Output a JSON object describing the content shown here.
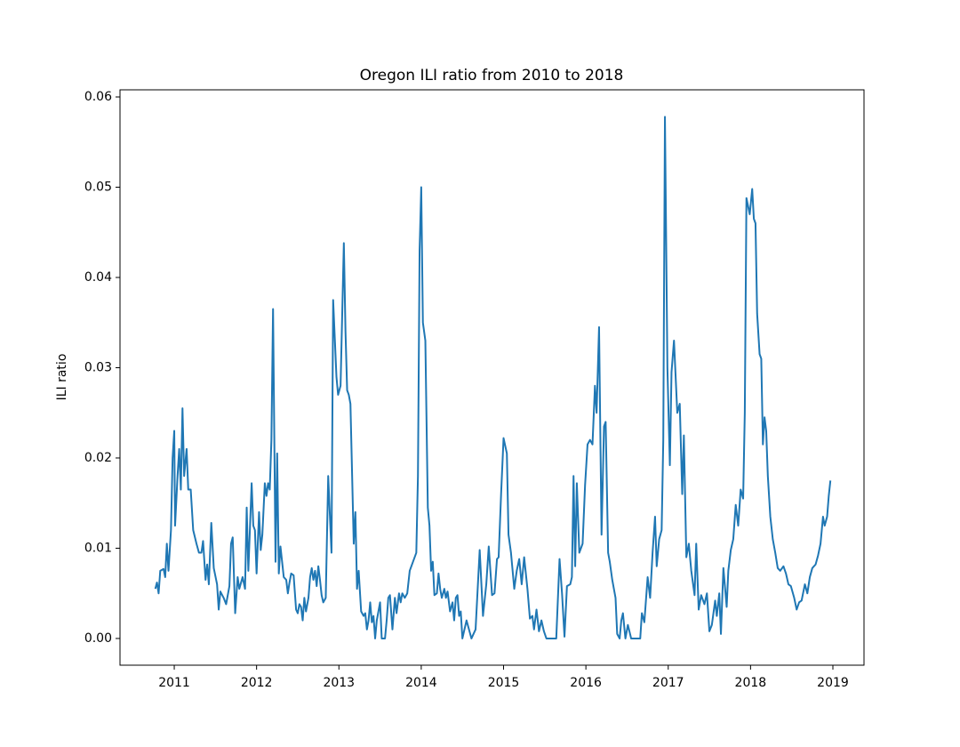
{
  "chart_data": {
    "type": "line",
    "title": "Oregon ILI ratio from 2010 to 2018",
    "y_label": "ILI ratio",
    "xlim": [
      2010.341,
      2019.378
    ],
    "xticks": [
      2011,
      2012,
      2013,
      2014,
      2015,
      2016,
      2017,
      2018,
      2019
    ],
    "ylim": [
      -0.00296,
      0.06079
    ],
    "yticks": [
      {
        "value": 0,
        "label": "0.00"
      },
      0.01,
      0.02,
      0.03,
      0.04,
      0.05,
      0.06
    ],
    "grid": false,
    "x": [
      2010.77,
      2010.79,
      2010.81,
      2010.83,
      2010.87,
      2010.89,
      2010.91,
      2010.93,
      2010.96,
      2010.98,
      2011.0,
      2011.01,
      2011.04,
      2011.06,
      2011.08,
      2011.1,
      2011.12,
      2011.15,
      2011.17,
      2011.2,
      2011.23,
      2011.27,
      2011.3,
      2011.33,
      2011.35,
      2011.38,
      2011.4,
      2011.42,
      2011.45,
      2011.48,
      2011.52,
      2011.54,
      2011.56,
      2011.6,
      2011.63,
      2011.67,
      2011.69,
      2011.71,
      2011.74,
      2011.77,
      2011.79,
      2011.83,
      2011.86,
      2011.88,
      2011.9,
      2011.94,
      2011.96,
      2011.98,
      2012.0,
      2012.03,
      2012.05,
      2012.07,
      2012.1,
      2012.12,
      2012.14,
      2012.16,
      2012.18,
      2012.2,
      2012.23,
      2012.25,
      2012.27,
      2012.29,
      2012.31,
      2012.33,
      2012.36,
      2012.38,
      2012.4,
      2012.42,
      2012.45,
      2012.48,
      2012.5,
      2012.52,
      2012.54,
      2012.56,
      2012.58,
      2012.6,
      2012.63,
      2012.65,
      2012.67,
      2012.69,
      2012.71,
      2012.73,
      2012.75,
      2012.77,
      2012.79,
      2012.81,
      2012.84,
      2012.87,
      2012.91,
      2012.93,
      2012.97,
      2012.99,
      2013.02,
      2013.06,
      2013.08,
      2013.1,
      2013.12,
      2013.14,
      2013.18,
      2013.2,
      2013.22,
      2013.24,
      2013.27,
      2013.3,
      2013.32,
      2013.34,
      2013.36,
      2013.38,
      2013.4,
      2013.42,
      2013.44,
      2013.46,
      2013.5,
      2013.52,
      2013.56,
      2013.58,
      2013.6,
      2013.62,
      2013.65,
      2013.68,
      2013.7,
      2013.73,
      2013.75,
      2013.77,
      2013.8,
      2013.83,
      2013.86,
      2013.9,
      2013.94,
      2013.96,
      2013.98,
      2014.0,
      2014.02,
      2014.05,
      2014.08,
      2014.1,
      2014.12,
      2014.14,
      2014.16,
      2014.19,
      2014.21,
      2014.23,
      2014.25,
      2014.28,
      2014.3,
      2014.32,
      2014.35,
      2014.38,
      2014.4,
      2014.42,
      2014.44,
      2014.46,
      2014.48,
      2014.5,
      2014.55,
      2014.61,
      2014.66,
      2014.71,
      2014.75,
      2014.79,
      2014.82,
      2014.86,
      2014.89,
      2014.92,
      2014.94,
      2014.97,
      2015.0,
      2015.04,
      2015.06,
      2015.09,
      2015.13,
      2015.16,
      2015.19,
      2015.22,
      2015.25,
      2015.29,
      2015.32,
      2015.35,
      2015.37,
      2015.4,
      2015.43,
      2015.46,
      2015.49,
      2015.52,
      2015.58,
      2015.64,
      2015.68,
      2015.71,
      2015.74,
      2015.77,
      2015.81,
      2015.83,
      2015.85,
      2015.87,
      2015.89,
      2015.92,
      2015.96,
      2015.99,
      2016.02,
      2016.05,
      2016.08,
      2016.11,
      2016.13,
      2016.16,
      2016.19,
      2016.22,
      2016.24,
      2016.27,
      2016.29,
      2016.32,
      2016.36,
      2016.38,
      2016.41,
      2016.43,
      2016.45,
      2016.48,
      2016.51,
      2016.55,
      2016.62,
      2016.66,
      2016.68,
      2016.71,
      2016.75,
      2016.78,
      2016.81,
      2016.84,
      2016.86,
      2016.89,
      2016.92,
      2016.94,
      2016.96,
      2016.99,
      2017.02,
      2017.04,
      2017.07,
      2017.09,
      2017.11,
      2017.14,
      2017.17,
      2017.19,
      2017.22,
      2017.25,
      2017.28,
      2017.32,
      2017.34,
      2017.37,
      2017.4,
      2017.44,
      2017.47,
      2017.5,
      2017.53,
      2017.57,
      2017.59,
      2017.62,
      2017.64,
      2017.67,
      2017.71,
      2017.73,
      2017.76,
      2017.79,
      2017.82,
      2017.85,
      2017.88,
      2017.91,
      2017.93,
      2017.95,
      2017.99,
      2018.02,
      2018.04,
      2018.06,
      2018.08,
      2018.11,
      2018.13,
      2018.15,
      2018.17,
      2018.19,
      2018.21,
      2018.24,
      2018.27,
      2018.3,
      2018.33,
      2018.36,
      2018.4,
      2018.43,
      2018.46,
      2018.49,
      2018.53,
      2018.56,
      2018.59,
      2018.62,
      2018.66,
      2018.69,
      2018.72,
      2018.75,
      2018.79,
      2018.82,
      2018.85,
      2018.88,
      2018.9,
      2018.93,
      2018.95,
      2018.97
    ],
    "series": [
      {
        "color": "#1f77b4",
        "values": [
          0.0055,
          0.0062,
          0.005,
          0.0075,
          0.0077,
          0.0068,
          0.0105,
          0.0075,
          0.012,
          0.02,
          0.023,
          0.0125,
          0.018,
          0.021,
          0.0165,
          0.0255,
          0.018,
          0.021,
          0.0165,
          0.0165,
          0.012,
          0.0105,
          0.0095,
          0.0095,
          0.0108,
          0.0065,
          0.0082,
          0.006,
          0.0128,
          0.0078,
          0.006,
          0.0032,
          0.0052,
          0.0045,
          0.0038,
          0.0058,
          0.0105,
          0.0112,
          0.0028,
          0.0068,
          0.0055,
          0.0068,
          0.0055,
          0.0145,
          0.0075,
          0.0172,
          0.0125,
          0.012,
          0.0072,
          0.014,
          0.0098,
          0.0115,
          0.0172,
          0.0158,
          0.0172,
          0.0165,
          0.022,
          0.0365,
          0.0085,
          0.0205,
          0.0072,
          0.0102,
          0.0085,
          0.0068,
          0.0065,
          0.005,
          0.0062,
          0.0072,
          0.007,
          0.0032,
          0.0028,
          0.0038,
          0.0035,
          0.002,
          0.0045,
          0.003,
          0.0045,
          0.0068,
          0.0078,
          0.0065,
          0.0075,
          0.0058,
          0.008,
          0.0065,
          0.0048,
          0.004,
          0.0045,
          0.018,
          0.0095,
          0.0375,
          0.029,
          0.027,
          0.028,
          0.0438,
          0.034,
          0.0275,
          0.027,
          0.026,
          0.0105,
          0.014,
          0.0055,
          0.0075,
          0.003,
          0.0025,
          0.0028,
          0.001,
          0.002,
          0.004,
          0.0018,
          0.0025,
          0.0,
          0.002,
          0.004,
          0.0,
          0.0,
          0.002,
          0.0045,
          0.0048,
          0.001,
          0.0045,
          0.0028,
          0.005,
          0.004,
          0.005,
          0.0045,
          0.005,
          0.0075,
          0.0085,
          0.0095,
          0.018,
          0.043,
          0.05,
          0.035,
          0.033,
          0.0145,
          0.0125,
          0.0075,
          0.0085,
          0.0048,
          0.005,
          0.0072,
          0.0055,
          0.0045,
          0.0055,
          0.0045,
          0.0052,
          0.003,
          0.004,
          0.002,
          0.0045,
          0.0048,
          0.0025,
          0.003,
          0.0,
          0.002,
          0.0,
          0.001,
          0.0098,
          0.0025,
          0.006,
          0.0102,
          0.0048,
          0.005,
          0.0088,
          0.009,
          0.016,
          0.0222,
          0.0205,
          0.0115,
          0.0095,
          0.0055,
          0.0075,
          0.0088,
          0.006,
          0.009,
          0.0055,
          0.0022,
          0.0025,
          0.001,
          0.0032,
          0.0008,
          0.002,
          0.0008,
          0.0,
          0.0,
          0.0,
          0.0088,
          0.005,
          0.0002,
          0.0058,
          0.006,
          0.0068,
          0.018,
          0.008,
          0.0172,
          0.0095,
          0.0105,
          0.017,
          0.0215,
          0.022,
          0.0215,
          0.028,
          0.025,
          0.0345,
          0.0115,
          0.0235,
          0.024,
          0.0095,
          0.0085,
          0.0065,
          0.0045,
          0.0005,
          0.0,
          0.002,
          0.0028,
          0.0,
          0.0015,
          0.0,
          0.0,
          0.0,
          0.0028,
          0.0018,
          0.0068,
          0.0045,
          0.0095,
          0.0135,
          0.008,
          0.011,
          0.012,
          0.022,
          0.0578,
          0.03,
          0.0192,
          0.0295,
          0.033,
          0.029,
          0.025,
          0.026,
          0.016,
          0.0225,
          0.009,
          0.0105,
          0.0075,
          0.0048,
          0.0105,
          0.0032,
          0.0048,
          0.0038,
          0.005,
          0.0008,
          0.0015,
          0.0042,
          0.0025,
          0.005,
          0.0005,
          0.0078,
          0.0035,
          0.0075,
          0.0098,
          0.011,
          0.0148,
          0.0125,
          0.0165,
          0.0155,
          0.025,
          0.0488,
          0.047,
          0.0498,
          0.0465,
          0.046,
          0.036,
          0.0315,
          0.031,
          0.0215,
          0.0245,
          0.023,
          0.018,
          0.0135,
          0.011,
          0.0095,
          0.0078,
          0.0075,
          0.008,
          0.0072,
          0.006,
          0.0058,
          0.0045,
          0.0032,
          0.004,
          0.0042,
          0.006,
          0.005,
          0.0068,
          0.0078,
          0.0082,
          0.0092,
          0.0105,
          0.0135,
          0.0125,
          0.0135,
          0.0158,
          0.0175
        ]
      }
    ]
  }
}
